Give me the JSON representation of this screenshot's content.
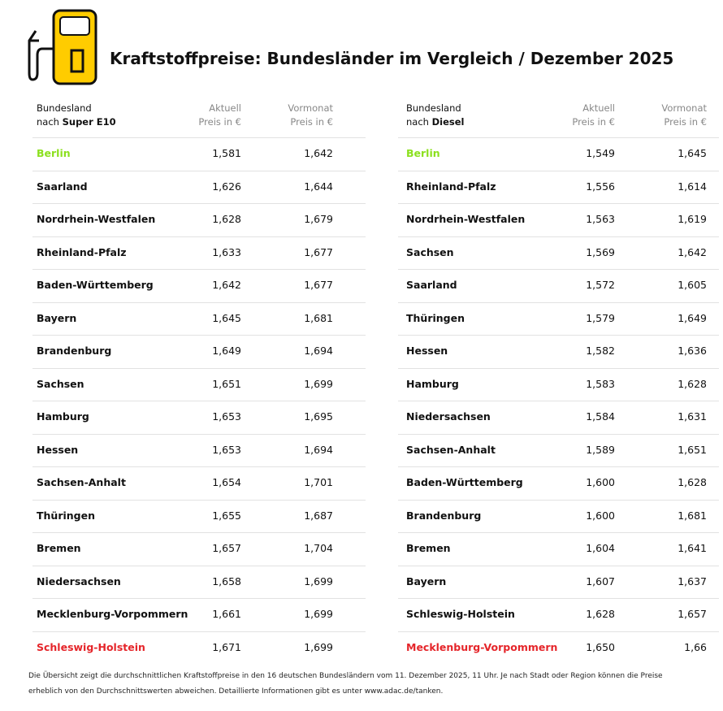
{
  "header": {
    "title": "Kraftstoffpreise: Bundesländer im Vergleich / Dezember 2025"
  },
  "tables": [
    {
      "header": [
        [
          "Bundesland",
          "nach",
          "Super E10"
        ],
        [
          "Aktuell",
          "Preis in €"
        ],
        [
          "Vormonat",
          "Preis in €"
        ]
      ],
      "rows": [
        [
          "Berlin",
          "1,581",
          "1,642"
        ],
        [
          "Saarland",
          "1,626",
          "1,644"
        ],
        [
          "Nordrhein-Westfalen",
          "1,628",
          "1,679"
        ],
        [
          "Rheinland-Pfalz",
          "1,633",
          "1,677"
        ],
        [
          "Baden-Württemberg",
          "1,642",
          "1,677"
        ],
        [
          "Bayern",
          "1,645",
          "1,681"
        ],
        [
          "Brandenburg",
          "1,649",
          "1,694"
        ],
        [
          "Sachsen",
          "1,651",
          "1,699"
        ],
        [
          "Hamburg",
          "1,653",
          "1,695"
        ],
        [
          "Hessen",
          "1,653",
          "1,694"
        ],
        [
          "Sachsen-Anhalt",
          "1,654",
          "1,701"
        ],
        [
          "Thüringen",
          "1,655",
          "1,687"
        ],
        [
          "Bremen",
          "1,657",
          "1,704"
        ],
        [
          "Niedersachsen",
          "1,658",
          "1,699"
        ],
        [
          "Mecklenburg-Vorpommern",
          "1,661",
          "1,699"
        ],
        [
          "Schleswig-Holstein",
          "1,671",
          "1,699"
        ]
      ]
    },
    {
      "header": [
        [
          "Bundesland",
          "nach",
          "Diesel"
        ],
        [
          "Aktuell",
          "Preis in €"
        ],
        [
          "Vormonat",
          "Preis in €"
        ]
      ],
      "rows": [
        [
          "Berlin",
          "1,549",
          "1,645"
        ],
        [
          "Rheinland-Pfalz",
          "1,556",
          "1,614"
        ],
        [
          "Nordrhein-Westfalen",
          "1,563",
          "1,619"
        ],
        [
          "Sachsen",
          "1,569",
          "1,642"
        ],
        [
          "Saarland",
          "1,572",
          "1,605"
        ],
        [
          "Thüringen",
          "1,579",
          "1,649"
        ],
        [
          "Hessen",
          "1,582",
          "1,636"
        ],
        [
          "Hamburg",
          "1,583",
          "1,628"
        ],
        [
          "Niedersachsen",
          "1,584",
          "1,631"
        ],
        [
          "Sachsen-Anhalt",
          "1,589",
          "1,651"
        ],
        [
          "Baden-Württemberg",
          "1,600",
          "1,628"
        ],
        [
          "Brandenburg",
          "1,600",
          "1,681"
        ],
        [
          "Bremen",
          "1,604",
          "1,641"
        ],
        [
          "Bayern",
          "1,607",
          "1,637"
        ],
        [
          "Schleswig-Holstein",
          "1,628",
          "1,657"
        ],
        [
          "Mecklenburg-Vorpommern",
          "1,650",
          "1,66"
        ]
      ]
    }
  ],
  "footnote": "Die Übersicht zeigt die durchschnittlichen Kraftstoffpreise in den 16 deutschen Bundesländern vom 11. Dezember 2025, 11 Uhr. Je nach Stadt oder Region können die Preise erheblich von den Durchschnittswerten abweichen. Detaillierte Informationen gibt es unter www.adac.de/tanken."
}
